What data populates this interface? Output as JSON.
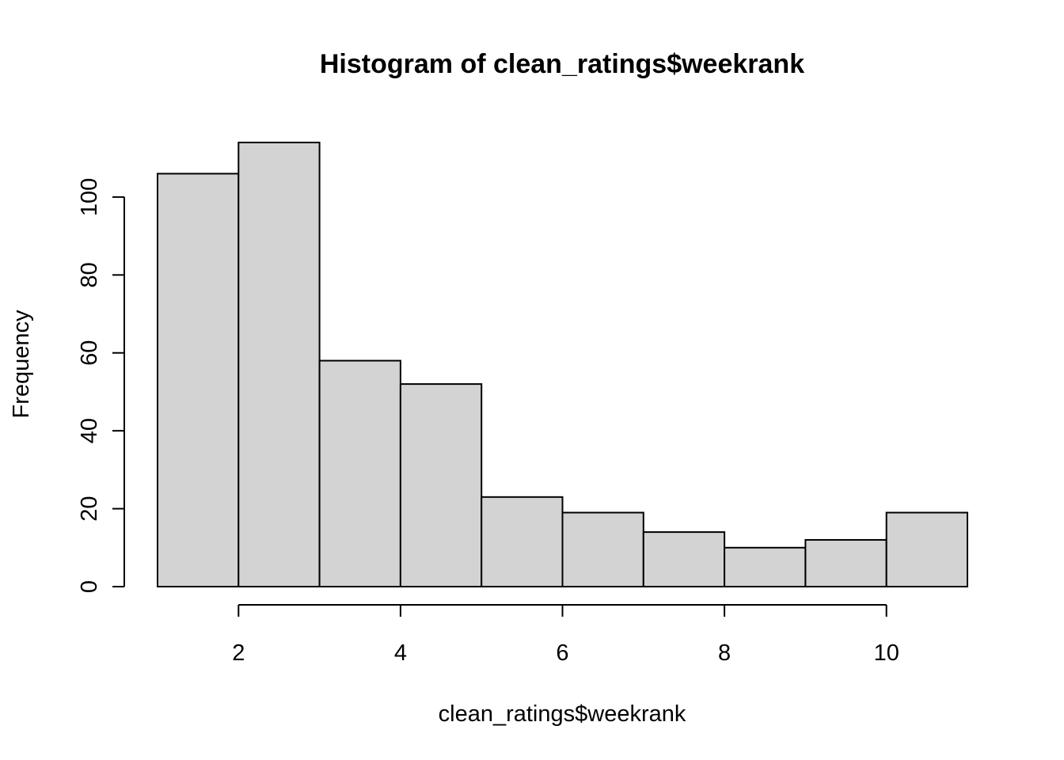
{
  "chart_data": {
    "type": "bar",
    "title": "Histogram of clean_ratings$weekrank",
    "xlabel": "clean_ratings$weekrank",
    "ylabel": "Frequency",
    "bins": [
      {
        "start": 1,
        "end": 2,
        "value": 106
      },
      {
        "start": 2,
        "end": 3,
        "value": 114
      },
      {
        "start": 3,
        "end": 4,
        "value": 58
      },
      {
        "start": 4,
        "end": 5,
        "value": 52
      },
      {
        "start": 5,
        "end": 6,
        "value": 23
      },
      {
        "start": 6,
        "end": 7,
        "value": 19
      },
      {
        "start": 7,
        "end": 8,
        "value": 14
      },
      {
        "start": 8,
        "end": 9,
        "value": 10
      },
      {
        "start": 9,
        "end": 10,
        "value": 12
      },
      {
        "start": 10,
        "end": 11,
        "value": 19
      }
    ],
    "xlim": [
      1,
      11
    ],
    "ylim": [
      0,
      114
    ],
    "x_ticks": [
      2,
      4,
      6,
      8,
      10
    ],
    "y_ticks": [
      0,
      20,
      40,
      60,
      80,
      100
    ],
    "grid": false,
    "bar_color": "#d3d3d3",
    "edge_color": "#000000"
  }
}
